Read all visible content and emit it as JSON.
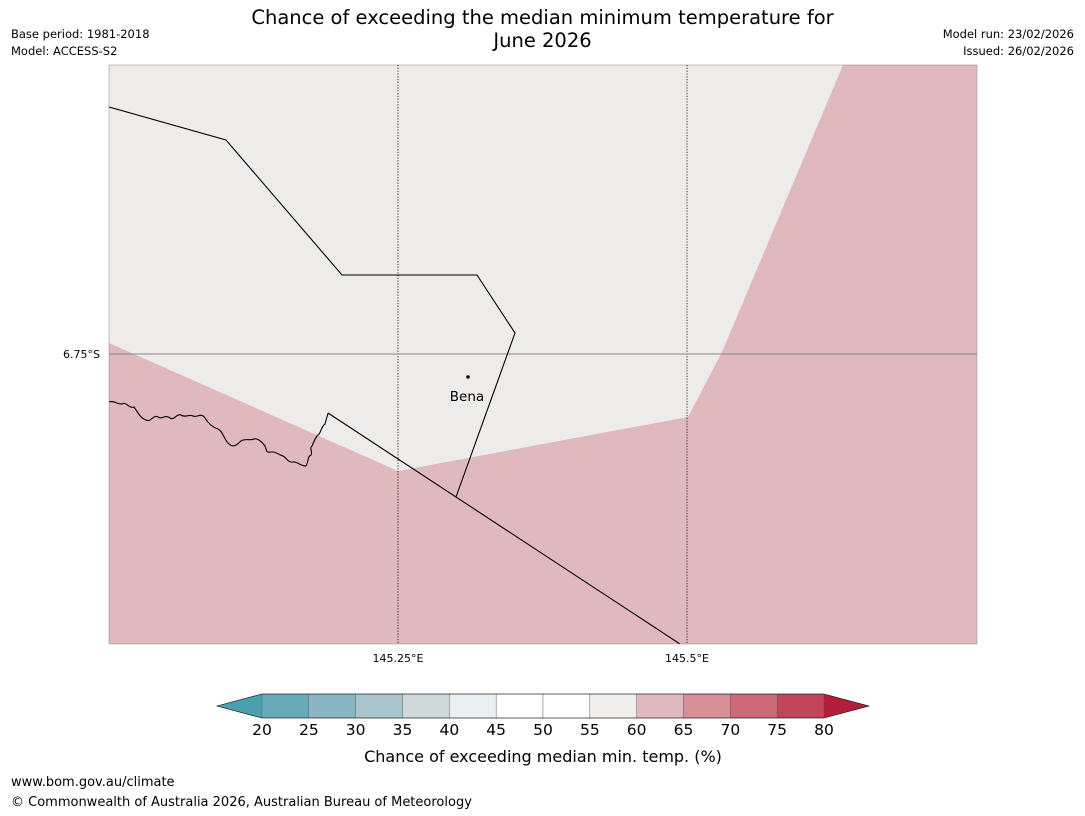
{
  "header": {
    "title_line1": "Chance of exceeding the median minimum temperature for",
    "title_line2": "June 2026",
    "base_period": "Base period: 1981-2018",
    "model": "Model: ACCESS-S2",
    "model_run": "Model run: 23/02/2026",
    "issued": "Issued: 26/02/2026"
  },
  "map": {
    "location_label": "Bena",
    "lat_label": "6.75°S",
    "lon_labels": [
      "145.25°E",
      "145.5°E"
    ],
    "colors": {
      "neutral": "#edecea",
      "above": "#e0b9be",
      "border": "#000000",
      "grid": "#000000",
      "frame": "#888888"
    }
  },
  "colorbar": {
    "title": "Chance of exceeding median min. temp. (%)",
    "ticks": [
      "20",
      "25",
      "30",
      "35",
      "40",
      "45",
      "50",
      "55",
      "60",
      "65",
      "70",
      "75",
      "80"
    ],
    "low_extend_color": "#4a9fb0",
    "high_extend_color": "#b21e3c",
    "colors": [
      "#6aabbb",
      "#8ab6c4",
      "#a8c6cb",
      "#cfd9da",
      "#eaf0f2",
      "#ffffff",
      "#ffffff",
      "#f0efed",
      "#e0b9be",
      "#d88e96",
      "#cd6a78",
      "#c04658"
    ]
  },
  "footer": {
    "url": "www.bom.gov.au/climate",
    "copyright": "© Commonwealth of Australia 2026, Australian Bureau of Meteorology"
  }
}
